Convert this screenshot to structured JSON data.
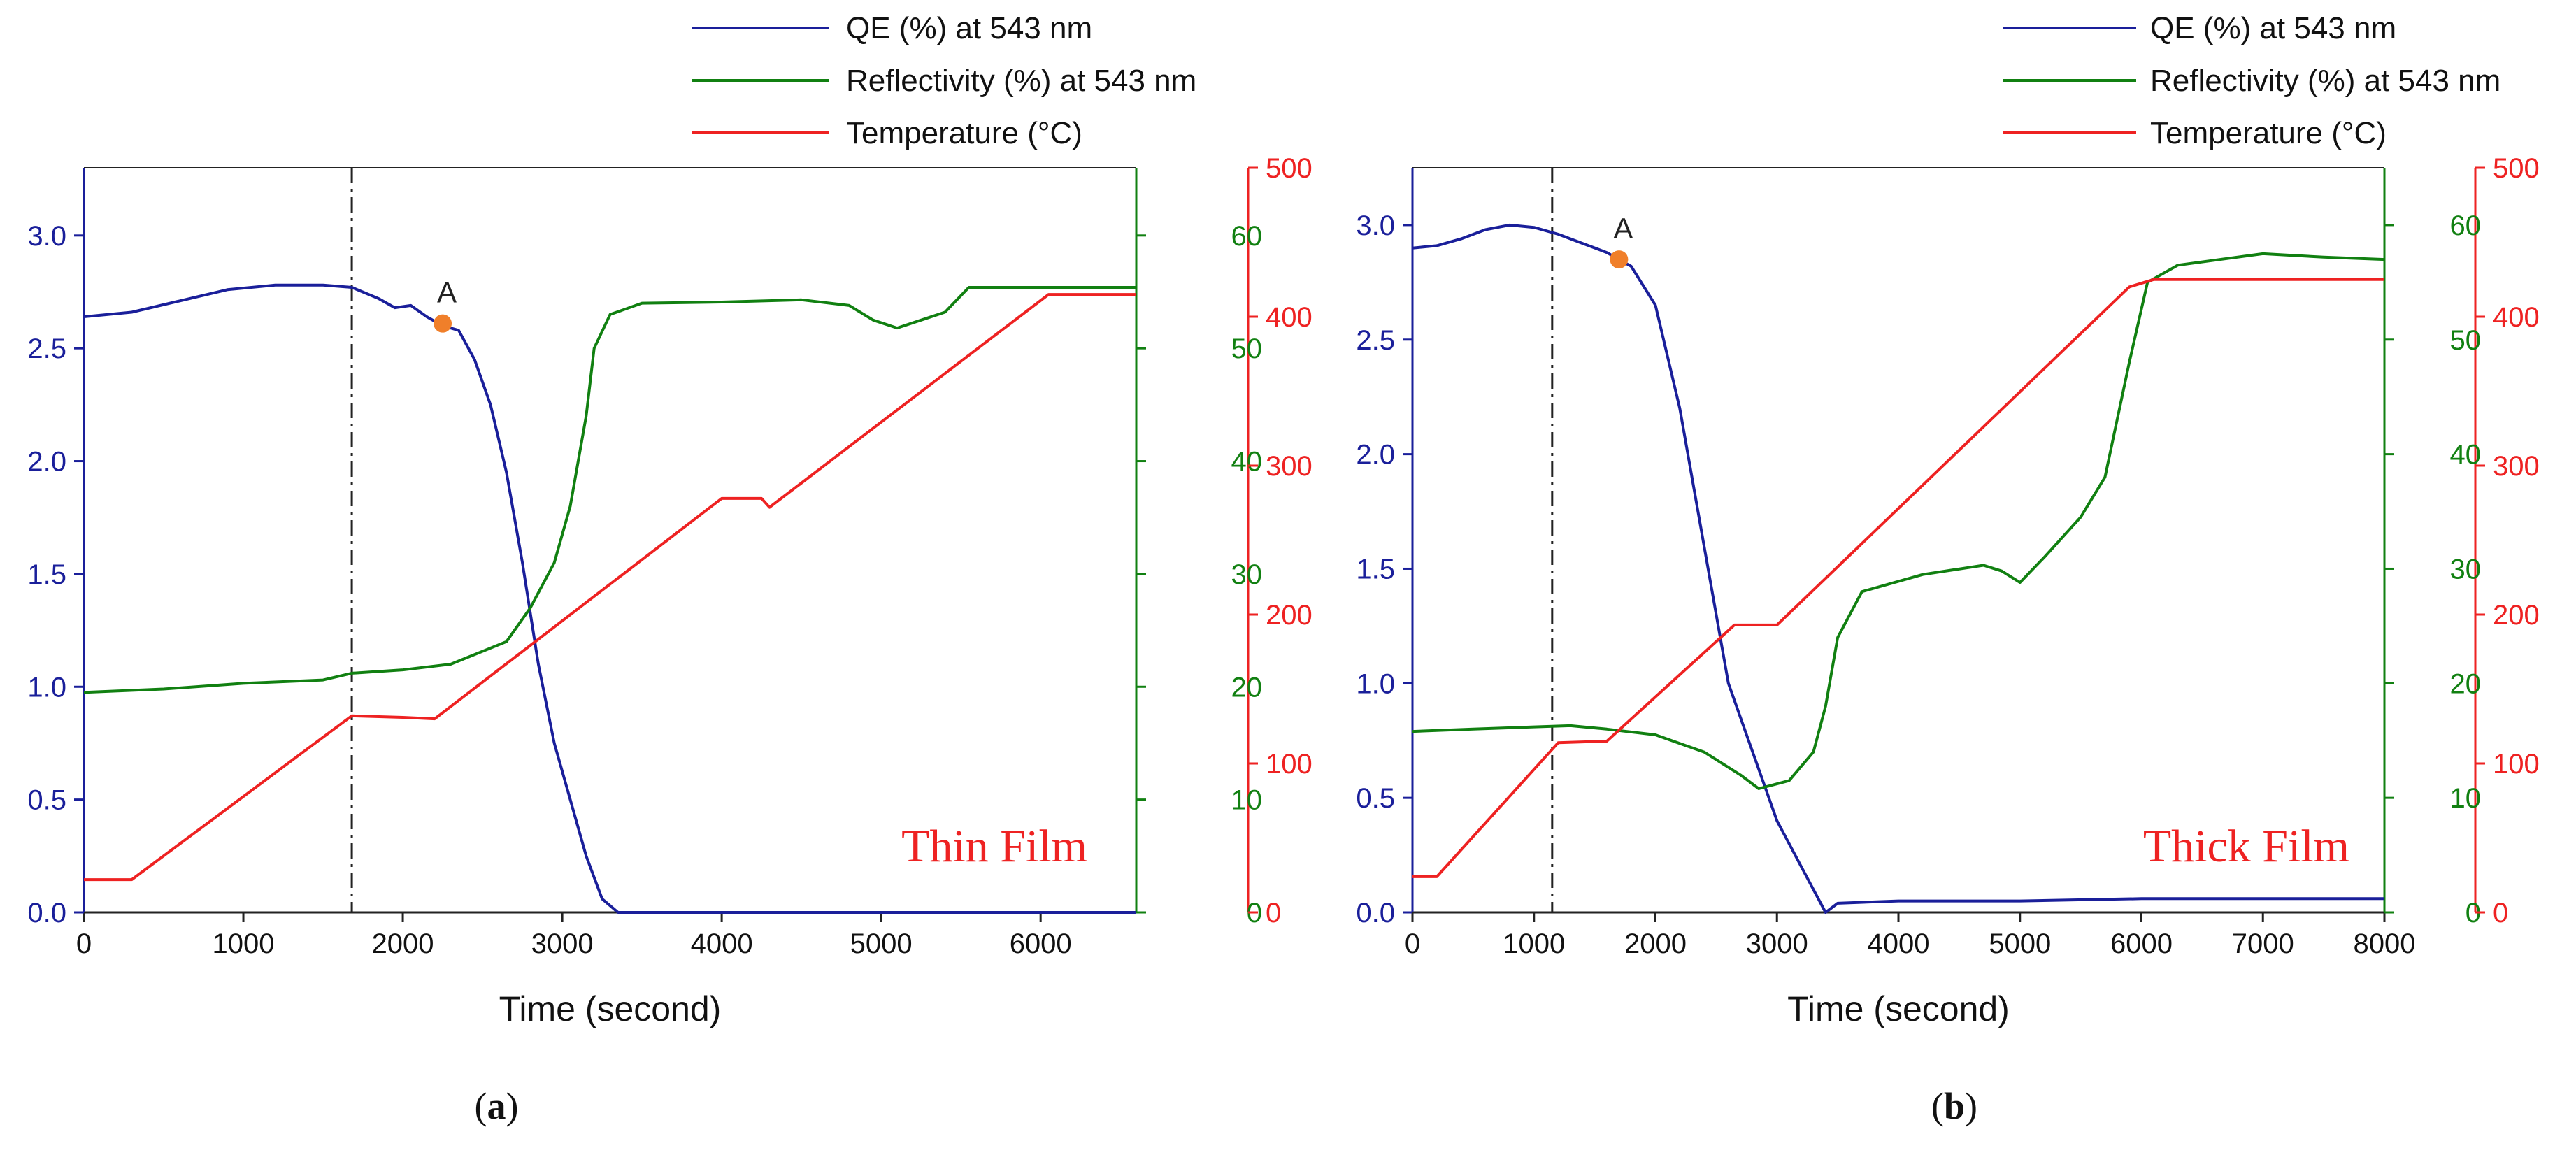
{
  "legend": [
    {
      "label": "QE (%) at 543 nm",
      "color": "#1a1f9a"
    },
    {
      "label": "Reflectivity (%) at 543 nm",
      "color": "#118011"
    },
    {
      "label": "Temperature (°C)",
      "color": "#ee2222"
    }
  ],
  "chart_data": [
    {
      "type": "line",
      "caption_letter": "a",
      "film_label": "Thin Film",
      "xlabel": "Time (second)",
      "xlim": [
        0,
        6600
      ],
      "xticks": [
        0,
        1000,
        2000,
        3000,
        4000,
        5000,
        6000
      ],
      "event_line_x": 1680,
      "marker": {
        "label": "A",
        "x": 2250,
        "y": 2.61,
        "color": "#f07f2a"
      },
      "axes": {
        "qe": {
          "range": [
            0,
            3.3
          ],
          "ticks": [
            0.0,
            0.5,
            1.0,
            1.5,
            2.0,
            2.5,
            3.0
          ],
          "color": "#1a1f9a"
        },
        "reflectivity": {
          "range": [
            0,
            66
          ],
          "ticks": [
            0,
            10,
            20,
            30,
            40,
            50,
            60
          ],
          "color": "#118011"
        },
        "temperature": {
          "range": [
            0,
            500
          ],
          "ticks": [
            0,
            100,
            200,
            300,
            400,
            500
          ],
          "color": "#ee2222"
        }
      },
      "series": [
        {
          "name": "QE (%) at 543 nm",
          "axis": "qe",
          "x": [
            0,
            300,
            600,
            900,
            1200,
            1500,
            1680,
            1850,
            1950,
            2050,
            2150,
            2250,
            2350,
            2450,
            2550,
            2650,
            2750,
            2850,
            2950,
            3050,
            3150,
            3250,
            3350,
            3500,
            6600
          ],
          "y": [
            2.64,
            2.66,
            2.71,
            2.76,
            2.78,
            2.78,
            2.77,
            2.72,
            2.68,
            2.69,
            2.64,
            2.6,
            2.58,
            2.45,
            2.25,
            1.95,
            1.55,
            1.1,
            0.75,
            0.5,
            0.25,
            0.06,
            0.0,
            0.0,
            0.0
          ]
        },
        {
          "name": "Reflectivity (%) at 543 nm",
          "axis": "reflectivity",
          "x": [
            0,
            500,
            1000,
            1500,
            1680,
            2000,
            2300,
            2650,
            2800,
            2950,
            3050,
            3150,
            3200,
            3300,
            3500,
            4000,
            4500,
            4800,
            4950,
            5100,
            5250,
            5400,
            5550,
            6600
          ],
          "y": [
            19.5,
            19.8,
            20.3,
            20.6,
            21.2,
            21.5,
            22.0,
            24.0,
            27.0,
            31.0,
            36.0,
            44.0,
            50.0,
            53.0,
            54.0,
            54.1,
            54.3,
            53.8,
            52.5,
            51.8,
            52.5,
            53.2,
            55.4,
            55.4
          ]
        },
        {
          "name": "Temperature (°C)",
          "axis": "temperature",
          "x": [
            0,
            300,
            1680,
            2000,
            2200,
            4000,
            4250,
            4300,
            6050,
            6600
          ],
          "y": [
            22,
            22,
            132,
            131,
            130,
            278,
            278,
            272,
            415,
            415
          ]
        }
      ]
    },
    {
      "type": "line",
      "caption_letter": "b",
      "film_label": "Thick Film",
      "xlabel": "Time (second)",
      "xlim": [
        0,
        8000
      ],
      "xticks": [
        0,
        1000,
        2000,
        3000,
        4000,
        5000,
        6000,
        7000,
        8000
      ],
      "event_line_x": 1150,
      "marker": {
        "label": "A",
        "x": 1700,
        "y": 2.85,
        "color": "#f07f2a"
      },
      "axes": {
        "qe": {
          "range": [
            0,
            3.25
          ],
          "ticks": [
            0.0,
            0.5,
            1.0,
            1.5,
            2.0,
            2.5,
            3.0
          ],
          "color": "#1a1f9a"
        },
        "reflectivity": {
          "range": [
            0,
            65
          ],
          "ticks": [
            0,
            10,
            20,
            30,
            40,
            50,
            60
          ],
          "color": "#118011"
        },
        "temperature": {
          "range": [
            0,
            500
          ],
          "ticks": [
            0,
            100,
            200,
            300,
            400,
            500
          ],
          "color": "#ee2222"
        }
      },
      "series": [
        {
          "name": "QE (%) at 543 nm",
          "axis": "qe",
          "x": [
            0,
            200,
            400,
            600,
            800,
            1000,
            1200,
            1400,
            1600,
            1800,
            2000,
            2200,
            2400,
            2600,
            2800,
            3000,
            3200,
            3400,
            3500,
            4000,
            5000,
            6000,
            8000
          ],
          "y": [
            2.9,
            2.91,
            2.94,
            2.98,
            3.0,
            2.99,
            2.96,
            2.92,
            2.88,
            2.82,
            2.65,
            2.2,
            1.6,
            1.0,
            0.7,
            0.4,
            0.2,
            0.0,
            0.04,
            0.05,
            0.05,
            0.06,
            0.06
          ]
        },
        {
          "name": "Reflectivity (%) at 543 nm",
          "axis": "reflectivity",
          "x": [
            0,
            500,
            1000,
            1300,
            1600,
            2000,
            2400,
            2700,
            2850,
            3100,
            3300,
            3400,
            3500,
            3700,
            4200,
            4700,
            4850,
            5000,
            5200,
            5500,
            5700,
            5900,
            6050,
            6300,
            7000,
            7500,
            8000
          ],
          "y": [
            15.8,
            16.0,
            16.2,
            16.3,
            16.0,
            15.5,
            14.0,
            12.0,
            10.8,
            11.5,
            14.0,
            18.0,
            24.0,
            28.0,
            29.5,
            30.3,
            29.8,
            28.8,
            31.0,
            34.5,
            38.0,
            48.0,
            55.0,
            56.5,
            57.5,
            57.2,
            57.0
          ]
        },
        {
          "name": "Temperature (°C)",
          "axis": "temperature",
          "x": [
            0,
            200,
            1200,
            1600,
            2650,
            3000,
            5900,
            6100,
            8000
          ],
          "y": [
            24,
            24,
            114,
            115,
            193,
            193,
            420,
            425,
            425
          ]
        }
      ]
    }
  ]
}
